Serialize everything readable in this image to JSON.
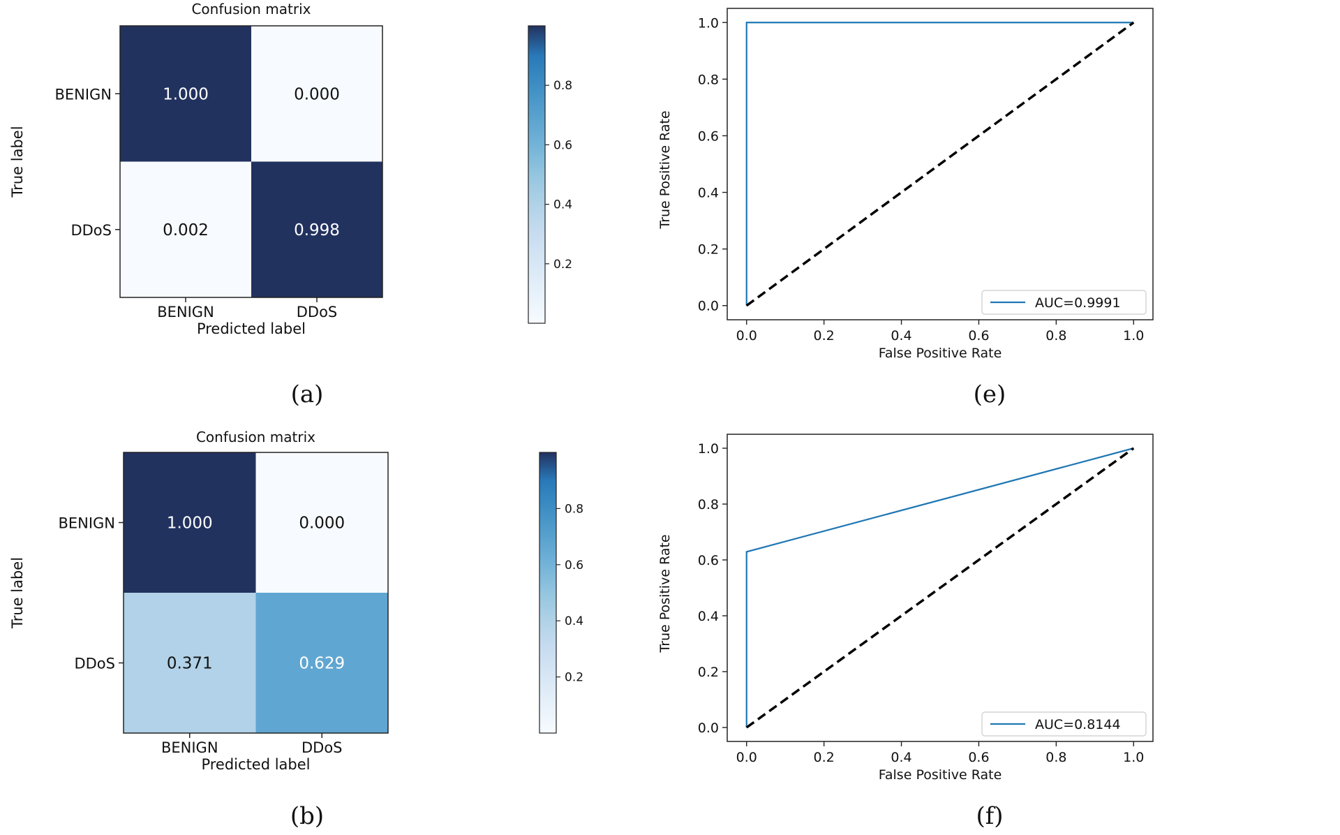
{
  "chart_data": [
    {
      "type": "heatmap",
      "panel": "a",
      "caption": "(a)",
      "title": "Confusion matrix",
      "xlabel": "Predicted label",
      "ylabel": "True label",
      "rows": [
        "BENIGN",
        "DDoS"
      ],
      "cols": [
        "BENIGN",
        "DDoS"
      ],
      "values": [
        [
          1.0,
          0.0
        ],
        [
          0.002,
          0.998
        ]
      ],
      "cell_labels": [
        [
          "1.000",
          "0.000"
        ],
        [
          "0.002",
          "0.998"
        ]
      ],
      "colorbar_ticks": [
        "0.2",
        "0.4",
        "0.6",
        "0.8"
      ],
      "colorbar_range": [
        0,
        1
      ]
    },
    {
      "type": "line",
      "panel": "e",
      "caption": "(e)",
      "xlabel": "False Positive Rate",
      "ylabel": "True Positive Rate",
      "xlim": [
        -0.05,
        1.05
      ],
      "ylim": [
        -0.05,
        1.05
      ],
      "xticks": [
        "0.0",
        "0.2",
        "0.4",
        "0.6",
        "0.8",
        "1.0"
      ],
      "yticks": [
        "0.0",
        "0.2",
        "0.4",
        "0.6",
        "0.8",
        "1.0"
      ],
      "series": [
        {
          "name": "AUC=0.9991",
          "x": [
            0,
            0,
            1
          ],
          "y": [
            0,
            1.0,
            1.0
          ],
          "color": "#1f77b4",
          "style": "solid"
        },
        {
          "name": "",
          "x": [
            0,
            1
          ],
          "y": [
            0,
            1
          ],
          "color": "#000000",
          "style": "dashed"
        }
      ],
      "legend": "lower-right"
    },
    {
      "type": "heatmap",
      "panel": "b",
      "caption": "(b)",
      "title": "Confusion matrix",
      "xlabel": "Predicted label",
      "ylabel": "True label",
      "rows": [
        "BENIGN",
        "DDoS"
      ],
      "cols": [
        "BENIGN",
        "DDoS"
      ],
      "values": [
        [
          1.0,
          0.0
        ],
        [
          0.371,
          0.629
        ]
      ],
      "cell_labels": [
        [
          "1.000",
          "0.000"
        ],
        [
          "0.371",
          "0.629"
        ]
      ],
      "colorbar_ticks": [
        "0.2",
        "0.4",
        "0.6",
        "0.8"
      ],
      "colorbar_range": [
        0,
        1
      ]
    },
    {
      "type": "line",
      "panel": "f",
      "caption": "(f)",
      "xlabel": "False Positive Rate",
      "ylabel": "True Positive Rate",
      "xlim": [
        -0.05,
        1.05
      ],
      "ylim": [
        -0.05,
        1.05
      ],
      "xticks": [
        "0.0",
        "0.2",
        "0.4",
        "0.6",
        "0.8",
        "1.0"
      ],
      "yticks": [
        "0.0",
        "0.2",
        "0.4",
        "0.6",
        "0.8",
        "1.0"
      ],
      "series": [
        {
          "name": "AUC=0.8144",
          "x": [
            0,
            0,
            1
          ],
          "y": [
            0,
            0.629,
            1.0
          ],
          "color": "#1f77b4",
          "style": "solid"
        },
        {
          "name": "",
          "x": [
            0,
            1
          ],
          "y": [
            0,
            1
          ],
          "color": "#000000",
          "style": "dashed"
        }
      ],
      "legend": "lower-right"
    }
  ]
}
